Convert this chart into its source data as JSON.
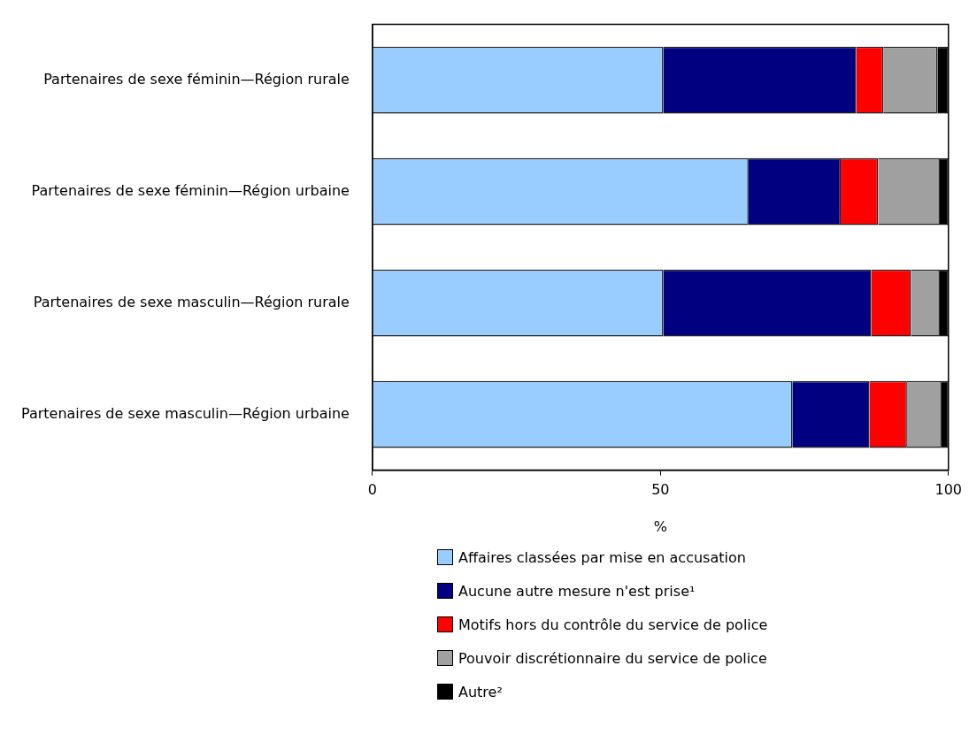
{
  "chart_data": {
    "type": "bar",
    "orientation": "horizontal",
    "stacked": true,
    "categories": [
      "Partenaires de sexe féminin—Région rurale",
      "Partenaires de sexe féminin—Région urbaine",
      "Partenaires de sexe masculin—Région rurale",
      "Partenaires de sexe masculin—Région urbaine"
    ],
    "series": [
      {
        "name": "Affaires classées par mise en accusation",
        "color": "#99ccff",
        "values": [
          50.5,
          65.3,
          50.5,
          72.9
        ]
      },
      {
        "name": "Aucune autre mesure n'est prise¹",
        "color": "#000080",
        "values": [
          33.5,
          16.0,
          36.1,
          13.4
        ]
      },
      {
        "name": "Motifs hors du contrôle du service de police",
        "color": "#ff0000",
        "values": [
          4.7,
          6.5,
          6.9,
          6.5
        ]
      },
      {
        "name": "Pouvoir discrétionnaire du service de police",
        "color": "#a0a0a0",
        "values": [
          9.4,
          10.7,
          5.0,
          6.0
        ]
      },
      {
        "name": "Autre²",
        "color": "#000000",
        "values": [
          1.9,
          1.5,
          1.5,
          1.2
        ]
      }
    ],
    "xlabel": "%",
    "xlim": [
      0,
      100
    ],
    "xticks": [
      0,
      50,
      100
    ],
    "grid": false,
    "legend": "bottom"
  }
}
